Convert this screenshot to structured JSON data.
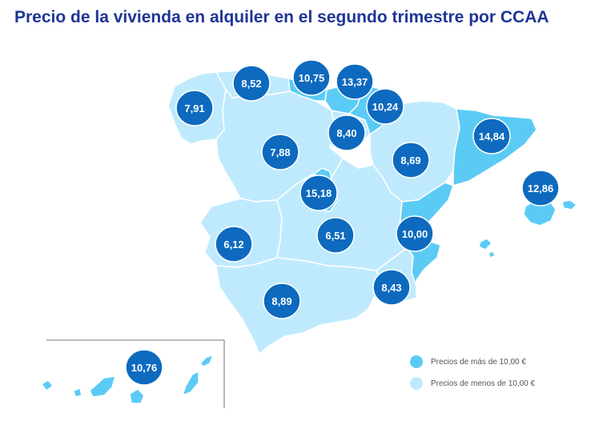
{
  "title": "Precio de la vivienda en alquiler en el segundo trimestre por CCAA",
  "colors": {
    "title": "#1f3596",
    "high": "#5bcbf5",
    "low": "#bfeafd",
    "bubble": "#0d6abf"
  },
  "regions": [
    {
      "name": "galicia",
      "value": "7,91",
      "category": "low"
    },
    {
      "name": "asturias",
      "value": "8,52",
      "category": "low"
    },
    {
      "name": "cantabria",
      "value": "10,75",
      "category": "high"
    },
    {
      "name": "pais-vasco",
      "value": "13,37",
      "category": "high"
    },
    {
      "name": "navarra",
      "value": "10,24",
      "category": "high"
    },
    {
      "name": "la-rioja",
      "value": "8,40",
      "category": "low"
    },
    {
      "name": "castilla-y-leon",
      "value": "7,88",
      "category": "low"
    },
    {
      "name": "aragon",
      "value": "8,69",
      "category": "low"
    },
    {
      "name": "cataluna",
      "value": "14,84",
      "category": "high"
    },
    {
      "name": "baleares",
      "value": "12,86",
      "category": "high"
    },
    {
      "name": "madrid",
      "value": "15,18",
      "category": "high"
    },
    {
      "name": "extremadura",
      "value": "6,12",
      "category": "low"
    },
    {
      "name": "castilla-la-mancha",
      "value": "6,51",
      "category": "low"
    },
    {
      "name": "comunidad-valenciana",
      "value": "10,00",
      "category": "high"
    },
    {
      "name": "murcia",
      "value": "8,43",
      "category": "low"
    },
    {
      "name": "andalucia",
      "value": "8,89",
      "category": "low"
    },
    {
      "name": "canarias",
      "value": "10,76",
      "category": "high"
    }
  ],
  "legend": [
    {
      "label": "Precios de más de 10,00 €",
      "category": "high"
    },
    {
      "label": "Precios de menos de 10,00 €",
      "category": "low"
    }
  ]
}
